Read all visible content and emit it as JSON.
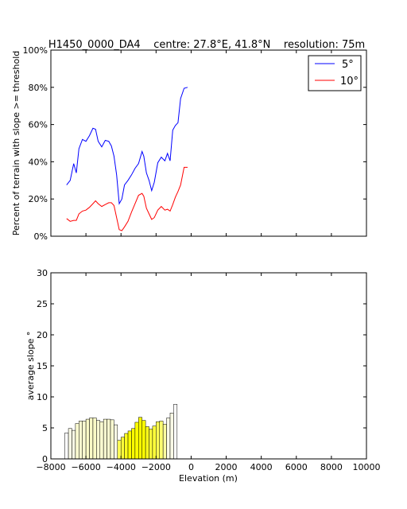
{
  "figure_title": "H1450_0000_DA4    centre: 27.8°E, 41.8°N    resolution: 75m",
  "chart_data": [
    {
      "type": "line",
      "ylabel": "Percent of terrain with slope >= threshold",
      "xlim": [
        -8000,
        10000
      ],
      "ylim": [
        0,
        100
      ],
      "y_tick_labels": [
        "0%",
        "20%",
        "40%",
        "60%",
        "80%",
        "100%"
      ],
      "y_tick_values": [
        0,
        20,
        40,
        60,
        80,
        100
      ],
      "legend": {
        "placement": "top-right",
        "entries": [
          "5°",
          "10°"
        ]
      },
      "x": [
        -7100,
        -6900,
        -6700,
        -6550,
        -6400,
        -6200,
        -6000,
        -5800,
        -5600,
        -5450,
        -5300,
        -5100,
        -4900,
        -4700,
        -4550,
        -4400,
        -4250,
        -4100,
        -3950,
        -3800,
        -3600,
        -3400,
        -3200,
        -3000,
        -2800,
        -2700,
        -2550,
        -2400,
        -2250,
        -2100,
        -1900,
        -1700,
        -1500,
        -1350,
        -1200,
        -1050,
        -900,
        -750,
        -600,
        -400,
        -200
      ],
      "series": [
        {
          "name": "5°",
          "color": "#0000ff",
          "values": [
            27.5,
            30,
            39,
            34,
            47,
            52,
            51,
            54,
            58,
            57.5,
            51,
            48,
            51.5,
            51,
            48.5,
            43,
            33,
            17.5,
            20,
            27.5,
            30,
            33,
            36.5,
            39,
            45.5,
            43,
            34,
            30,
            24.5,
            29,
            39.5,
            42.5,
            40.5,
            44.5,
            40.5,
            57,
            59.5,
            61,
            74,
            79.5,
            80
          ]
        },
        {
          "name": "10°",
          "color": "#ff0000",
          "values": [
            9.5,
            8,
            8.5,
            8.5,
            12,
            13.5,
            14,
            15.5,
            17.5,
            19,
            17.5,
            16,
            17,
            18,
            18,
            16.5,
            10,
            3.5,
            3,
            5,
            8,
            13,
            17.5,
            22,
            23,
            21.5,
            15,
            12,
            9,
            10,
            14,
            16,
            14,
            14.5,
            13.5,
            17,
            21,
            24,
            27.5,
            37,
            37
          ]
        }
      ]
    },
    {
      "type": "bar",
      "ylabel": "average slope °",
      "xlabel": "Elevation (m)",
      "xlim": [
        -8000,
        10000
      ],
      "ylim": [
        0,
        30
      ],
      "y_tick_labels": [
        "0",
        "5",
        "10",
        "15",
        "20",
        "25",
        "30"
      ],
      "y_tick_values": [
        0,
        5,
        10,
        15,
        20,
        25,
        30
      ],
      "x_tick_labels": [
        "−8000",
        "−6000",
        "−4000",
        "−2000",
        "0",
        "2000",
        "4000",
        "6000",
        "8000",
        "10000"
      ],
      "x_tick_values": [
        -8000,
        -6000,
        -4000,
        -2000,
        0,
        2000,
        4000,
        6000,
        8000,
        10000
      ],
      "bin_start": -7200,
      "bin_width": 200,
      "values": [
        4.2,
        4.9,
        4.6,
        5.7,
        6.1,
        6.1,
        6.4,
        6.6,
        6.6,
        6.2,
        6.0,
        6.4,
        6.4,
        6.3,
        5.5,
        3.0,
        3.5,
        4.1,
        4.5,
        4.9,
        5.9,
        6.7,
        6.2,
        5.2,
        4.8,
        5.3,
        6.0,
        6.1,
        5.6,
        6.6,
        7.4,
        8.8
      ],
      "bar_colors": [
        "#ffffff",
        "#fafae6",
        "#fafae6",
        "#fafad0",
        "#fafad0",
        "#fafad0",
        "#fafac6",
        "#fafac6",
        "#fafac6",
        "#fafad0",
        "#fafad0",
        "#fafad0",
        "#fafad0",
        "#fafad0",
        "#fafae6",
        "#ffff55",
        "#ffff3a",
        "#ffff1e",
        "#ffff00",
        "#ffff00",
        "#ffff00",
        "#ffff00",
        "#ffff00",
        "#ffff1e",
        "#ffff3a",
        "#ffff3a",
        "#ffff55",
        "#ffff70",
        "#ffffa0",
        "#fafae6",
        "#fafae6",
        "#ffffff"
      ]
    }
  ]
}
